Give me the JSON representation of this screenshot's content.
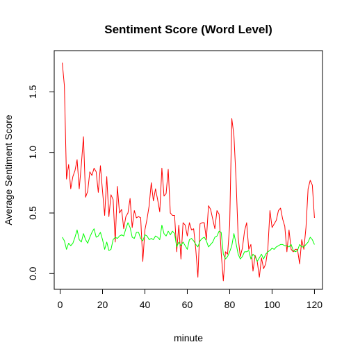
{
  "chart_data": {
    "type": "line",
    "title": "Sentiment Score (Word Level)",
    "xlabel": "minute",
    "ylabel": "Average Sentiment Score",
    "xlim": [
      -2.8,
      123.8
    ],
    "ylim": [
      -0.13,
      1.84
    ],
    "xticks": [
      0,
      20,
      40,
      60,
      80,
      100,
      120
    ],
    "xtick_labels": [
      "0",
      "20",
      "40",
      "60",
      "80",
      "100",
      "120"
    ],
    "yticks": [
      0.0,
      0.5,
      1.0,
      1.5
    ],
    "ytick_labels": [
      "0.0",
      "0.5",
      "1.0",
      "1.5"
    ],
    "grid": false,
    "legend": "none",
    "x": [
      1,
      2,
      3,
      4,
      5,
      6,
      7,
      8,
      9,
      10,
      11,
      12,
      13,
      14,
      15,
      16,
      17,
      18,
      19,
      20,
      21,
      22,
      23,
      24,
      25,
      26,
      27,
      28,
      29,
      30,
      31,
      32,
      33,
      34,
      35,
      36,
      37,
      38,
      39,
      40,
      41,
      42,
      43,
      44,
      45,
      46,
      47,
      48,
      49,
      50,
      51,
      52,
      53,
      54,
      55,
      56,
      57,
      58,
      59,
      60,
      61,
      62,
      63,
      64,
      65,
      66,
      67,
      68,
      69,
      70,
      71,
      72,
      73,
      74,
      75,
      76,
      77,
      78,
      79,
      80,
      81,
      82,
      83,
      84,
      85,
      86,
      87,
      88,
      89,
      90,
      91,
      92,
      93,
      94,
      95,
      96,
      97,
      98,
      99,
      100,
      101,
      102,
      103,
      104,
      105,
      106,
      107,
      108,
      109,
      110,
      111,
      112,
      113,
      114,
      115,
      116,
      117,
      118,
      119,
      120
    ],
    "series": [
      {
        "color": "#ff0000",
        "values": [
          1.74,
          1.55,
          0.78,
          0.9,
          0.7,
          0.8,
          0.85,
          0.94,
          0.7,
          0.9,
          1.13,
          0.63,
          0.68,
          0.84,
          0.81,
          0.87,
          0.84,
          0.67,
          0.89,
          0.68,
          0.48,
          0.8,
          0.47,
          0.65,
          0.61,
          0.26,
          0.72,
          0.5,
          0.53,
          0.37,
          0.47,
          0.5,
          0.62,
          0.38,
          0.52,
          0.46,
          0.47,
          0.46,
          0.1,
          0.36,
          0.45,
          0.56,
          0.75,
          0.6,
          0.7,
          0.61,
          0.51,
          0.87,
          0.64,
          0.66,
          0.86,
          0.5,
          0.48,
          0.48,
          0.18,
          0.4,
          0.12,
          0.42,
          0.4,
          0.31,
          0.42,
          0.36,
          0.37,
          0.2,
          -0.03,
          0.41,
          0.42,
          0.42,
          0.28,
          0.56,
          0.53,
          0.45,
          0.37,
          0.52,
          0.49,
          0.17,
          -0.06,
          0.18,
          0.16,
          0.4,
          1.28,
          1.14,
          0.78,
          0.3,
          0.14,
          0.21,
          0.35,
          0.42,
          0.2,
          0.24,
          0.02,
          0.15,
          0.1,
          -0.03,
          0.13,
          0.04,
          0.08,
          0.2,
          0.52,
          0.38,
          0.41,
          0.44,
          0.52,
          0.54,
          0.45,
          0.39,
          0.18,
          0.36,
          0.2,
          0.18,
          0.2,
          0.2,
          0.08,
          0.28,
          0.2,
          0.38,
          0.7,
          0.77,
          0.73,
          0.46
        ]
      },
      {
        "color": "#00ff00",
        "values": [
          0.3,
          0.27,
          0.2,
          0.25,
          0.23,
          0.25,
          0.3,
          0.36,
          0.28,
          0.26,
          0.33,
          0.28,
          0.25,
          0.3,
          0.34,
          0.37,
          0.3,
          0.31,
          0.34,
          0.28,
          0.2,
          0.26,
          0.19,
          0.2,
          0.28,
          0.3,
          0.29,
          0.31,
          0.32,
          0.31,
          0.37,
          0.42,
          0.38,
          0.3,
          0.29,
          0.34,
          0.34,
          0.29,
          0.27,
          0.32,
          0.31,
          0.28,
          0.29,
          0.28,
          0.31,
          0.3,
          0.28,
          0.4,
          0.33,
          0.31,
          0.35,
          0.32,
          0.35,
          0.33,
          0.22,
          0.26,
          0.23,
          0.26,
          0.23,
          0.2,
          0.28,
          0.29,
          0.27,
          0.24,
          0.22,
          0.27,
          0.29,
          0.3,
          0.27,
          0.22,
          0.24,
          0.26,
          0.3,
          0.31,
          0.35,
          0.34,
          0.16,
          0.12,
          0.14,
          0.18,
          0.23,
          0.33,
          0.25,
          0.16,
          0.12,
          0.14,
          0.18,
          0.18,
          0.19,
          0.12,
          0.16,
          0.14,
          0.1,
          0.13,
          0.16,
          0.12,
          0.16,
          0.18,
          0.19,
          0.21,
          0.2,
          0.22,
          0.23,
          0.24,
          0.24,
          0.23,
          0.23,
          0.22,
          0.24,
          0.19,
          0.18,
          0.19,
          0.24,
          0.22,
          0.22,
          0.24,
          0.26,
          0.3,
          0.28,
          0.24
        ]
      }
    ]
  }
}
